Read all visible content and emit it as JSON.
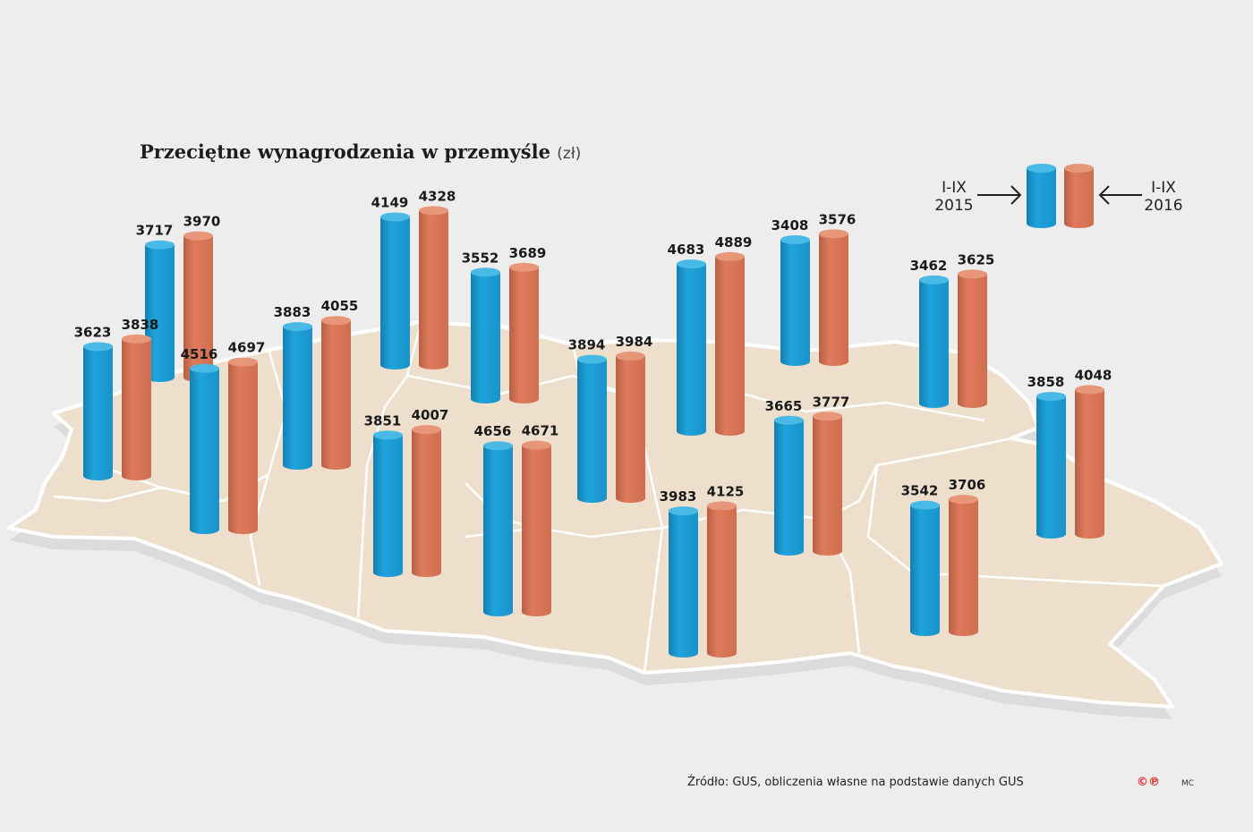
{
  "title": "Przeciętne wynagrodzenia w przemyśle",
  "title_unit": "(zł)",
  "legend": {
    "left": {
      "line1": "I-IX",
      "line2": "2015"
    },
    "right": {
      "line1": "I-IX",
      "line2": "2016"
    }
  },
  "source": "Źródło: GUS, obliczenia własne na podstawie danych GUS",
  "author": "MC",
  "logo": "©℗",
  "colors": {
    "blue": "#1ea3dc",
    "orange": "#de7b5b",
    "map": "#eedfcd",
    "background": "#ededed"
  },
  "chart_data": {
    "type": "bar",
    "series": [
      {
        "name": "I-IX 2015",
        "values": [
          3717,
          3623,
          4516,
          3883,
          4149,
          3552,
          3851,
          4656,
          3894,
          4683,
          3408,
          3665,
          3983,
          3462,
          3542,
          3858
        ]
      },
      {
        "name": "I-IX 2016",
        "values": [
          3970,
          3838,
          4697,
          4055,
          4328,
          3689,
          4007,
          4671,
          3984,
          4889,
          3576,
          3777,
          4125,
          3625,
          3706,
          4048
        ]
      }
    ]
  }
}
